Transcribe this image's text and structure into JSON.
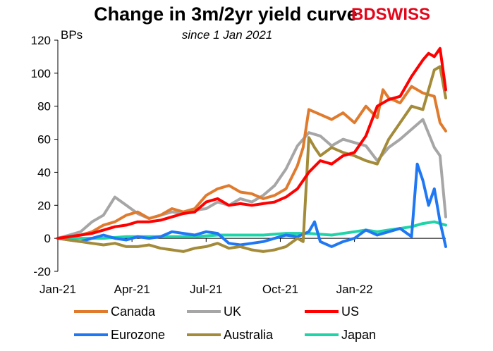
{
  "logo": {
    "part1": "BD",
    "part2": "SWISS"
  },
  "chart_data": {
    "type": "line",
    "title": "Change in 3m/2yr yield curve",
    "subtitle": "since 1 Jan 2021",
    "ylabel": "BPs",
    "ylim": [
      -20,
      120
    ],
    "yticks": [
      -20,
      0,
      20,
      40,
      60,
      80,
      100,
      120
    ],
    "xlim": [
      0,
      68
    ],
    "xticks": [
      {
        "label": "Jan-21",
        "x": 0
      },
      {
        "label": "Apr-21",
        "x": 13
      },
      {
        "label": "Jul-21",
        "x": 26
      },
      {
        "label": "Oct-21",
        "x": 39
      },
      {
        "label": "Jan-22",
        "x": 52
      }
    ],
    "grid": false,
    "legend_position": "bottom",
    "series": [
      {
        "name": "Canada",
        "color": "#e07b2e",
        "x": [
          0,
          2,
          4,
          6,
          8,
          10,
          12,
          14,
          16,
          18,
          20,
          22,
          24,
          26,
          28,
          30,
          32,
          34,
          36,
          38,
          40,
          42,
          43,
          44,
          46,
          48,
          50,
          52,
          54,
          56,
          57,
          58,
          60,
          62,
          63,
          64,
          66,
          67,
          68
        ],
        "y": [
          0,
          1,
          2,
          4,
          8,
          10,
          14,
          16,
          12,
          14,
          18,
          16,
          18,
          26,
          30,
          32,
          28,
          27,
          24,
          26,
          30,
          44,
          55,
          78,
          75,
          72,
          76,
          70,
          80,
          73,
          90,
          85,
          82,
          92,
          90,
          88,
          86,
          70,
          65
        ]
      },
      {
        "name": "UK",
        "color": "#a6a6a6",
        "x": [
          0,
          2,
          4,
          6,
          8,
          10,
          12,
          14,
          16,
          18,
          20,
          22,
          24,
          26,
          28,
          30,
          32,
          34,
          36,
          38,
          40,
          42,
          44,
          46,
          48,
          50,
          52,
          54,
          56,
          58,
          60,
          62,
          64,
          66,
          67,
          68
        ],
        "y": [
          0,
          2,
          4,
          10,
          14,
          25,
          20,
          15,
          12,
          14,
          16,
          15,
          17,
          18,
          22,
          20,
          24,
          22,
          26,
          32,
          42,
          56,
          64,
          62,
          56,
          60,
          58,
          56,
          47,
          55,
          60,
          66,
          72,
          55,
          50,
          13
        ]
      },
      {
        "name": "US",
        "color": "#ff0000",
        "x": [
          0,
          2,
          4,
          6,
          8,
          10,
          12,
          14,
          16,
          18,
          20,
          22,
          24,
          26,
          28,
          30,
          32,
          34,
          36,
          38,
          40,
          42,
          44,
          46,
          48,
          50,
          52,
          54,
          56,
          58,
          60,
          62,
          64,
          65,
          66,
          67,
          68
        ],
        "y": [
          0,
          1,
          2,
          3,
          5,
          7,
          8,
          10,
          10,
          11,
          13,
          15,
          16,
          22,
          24,
          20,
          21,
          20,
          21,
          22,
          25,
          30,
          40,
          47,
          45,
          50,
          52,
          62,
          80,
          84,
          86,
          98,
          108,
          112,
          110,
          115,
          90
        ]
      },
      {
        "name": "Eurozone",
        "color": "#1f77f4",
        "x": [
          0,
          2,
          4,
          6,
          8,
          10,
          12,
          14,
          16,
          18,
          20,
          22,
          24,
          26,
          28,
          30,
          32,
          34,
          36,
          38,
          40,
          42,
          44,
          45,
          46,
          48,
          50,
          52,
          54,
          56,
          58,
          60,
          62,
          63,
          64,
          65,
          66,
          67,
          68
        ],
        "y": [
          0,
          -1,
          -2,
          0,
          2,
          0,
          -1,
          1,
          0,
          1,
          4,
          3,
          2,
          4,
          3,
          -3,
          -4,
          -3,
          -2,
          0,
          2,
          1,
          4,
          10,
          -2,
          -5,
          -2,
          0,
          5,
          2,
          4,
          6,
          1,
          45,
          35,
          20,
          30,
          10,
          -5
        ]
      },
      {
        "name": "Australia",
        "color": "#a38b3a",
        "x": [
          0,
          2,
          4,
          6,
          8,
          10,
          12,
          14,
          16,
          18,
          20,
          22,
          24,
          26,
          28,
          30,
          32,
          34,
          36,
          38,
          40,
          42,
          43,
          44,
          45,
          46,
          48,
          50,
          52,
          54,
          56,
          58,
          60,
          62,
          64,
          66,
          67,
          68
        ],
        "y": [
          0,
          -1,
          -2,
          -3,
          -4,
          -3,
          -5,
          -5,
          -4,
          -6,
          -7,
          -8,
          -6,
          -5,
          -3,
          -6,
          -5,
          -7,
          -8,
          -7,
          -5,
          0,
          -2,
          61,
          55,
          50,
          55,
          52,
          50,
          47,
          45,
          60,
          70,
          80,
          78,
          102,
          104,
          85
        ]
      },
      {
        "name": "Japan",
        "color": "#1fd4a8",
        "x": [
          0,
          4,
          8,
          12,
          16,
          20,
          24,
          28,
          32,
          36,
          40,
          44,
          48,
          52,
          54,
          56,
          58,
          60,
          62,
          64,
          66,
          68
        ],
        "y": [
          0,
          0,
          0,
          1,
          1,
          1,
          1,
          2,
          2,
          2,
          3,
          3,
          2,
          4,
          5,
          4,
          5,
          6,
          7,
          9,
          10,
          8
        ]
      }
    ]
  }
}
